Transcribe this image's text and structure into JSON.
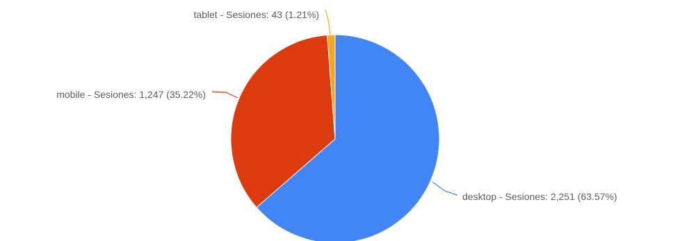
{
  "chart_data": {
    "type": "pie",
    "title": "",
    "series": [
      {
        "name": "Sesiones",
        "slices": [
          {
            "category": "desktop",
            "value": 2251,
            "percent": 63.57,
            "color": "#4285f4",
            "label": "desktop - Sesiones: 2,251 (63.57%)"
          },
          {
            "category": "mobile",
            "value": 1247,
            "percent": 35.22,
            "color": "#db3b0f",
            "label": "mobile - Sesiones: 1,247 (35.22%)"
          },
          {
            "category": "tablet",
            "value": 43,
            "percent": 1.21,
            "color": "#f4a71f",
            "label": "tablet - Sesiones: 43 (1.21%)"
          }
        ]
      }
    ],
    "legend": "none",
    "labels": "outside-with-leader-lines"
  }
}
